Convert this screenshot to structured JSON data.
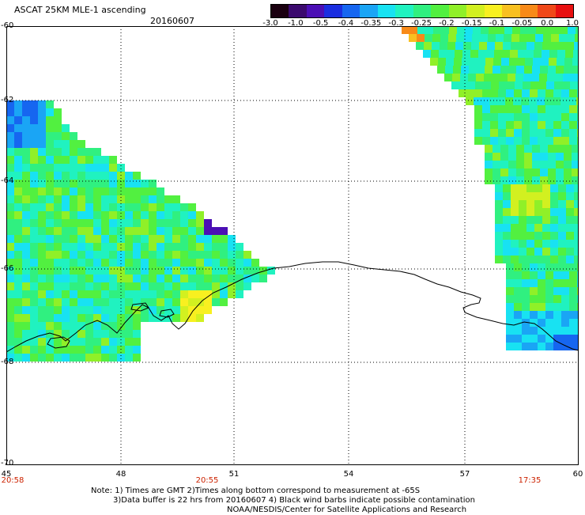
{
  "header": {
    "title": "ASCAT 25KM MLE-1 ascending",
    "date": "20160607"
  },
  "colorbar": {
    "labels": [
      "-3.0",
      "-1.0",
      "-0.5",
      "-0.4",
      "-0.35",
      "-0.3",
      "-0.25",
      "-0.2",
      "-0.15",
      "-0.1",
      "-0.05",
      "0.0",
      "1.0"
    ],
    "colors": [
      "#1a0010",
      "#3b0a6e",
      "#4b0fb5",
      "#1a2ee0",
      "#1666f0",
      "#1aa5f5",
      "#18e2f2",
      "#20f2c0",
      "#30f080",
      "#52f040",
      "#90f028",
      "#d2f020",
      "#f8f020",
      "#f8c020",
      "#f88a18",
      "#f04818",
      "#e81010"
    ]
  },
  "axes": {
    "y_labels": [
      "-60",
      "-62",
      "-64",
      "-66",
      "-68",
      "-70"
    ],
    "x_labels": [
      "45",
      "48",
      "51",
      "54",
      "57",
      "60"
    ],
    "time_labels": [
      "20:58",
      "20:55",
      "17:35"
    ]
  },
  "notes": [
    "Note: 1) Times are GMT 2)Times along bottom correspond to measurement at -65S",
    "3)Data buffer is 22 hrs from 20160607 4) Black wind barbs indicate possible contamination",
    "NOAA/NESDIS/Center for Satellite Applications and Research"
  ]
}
